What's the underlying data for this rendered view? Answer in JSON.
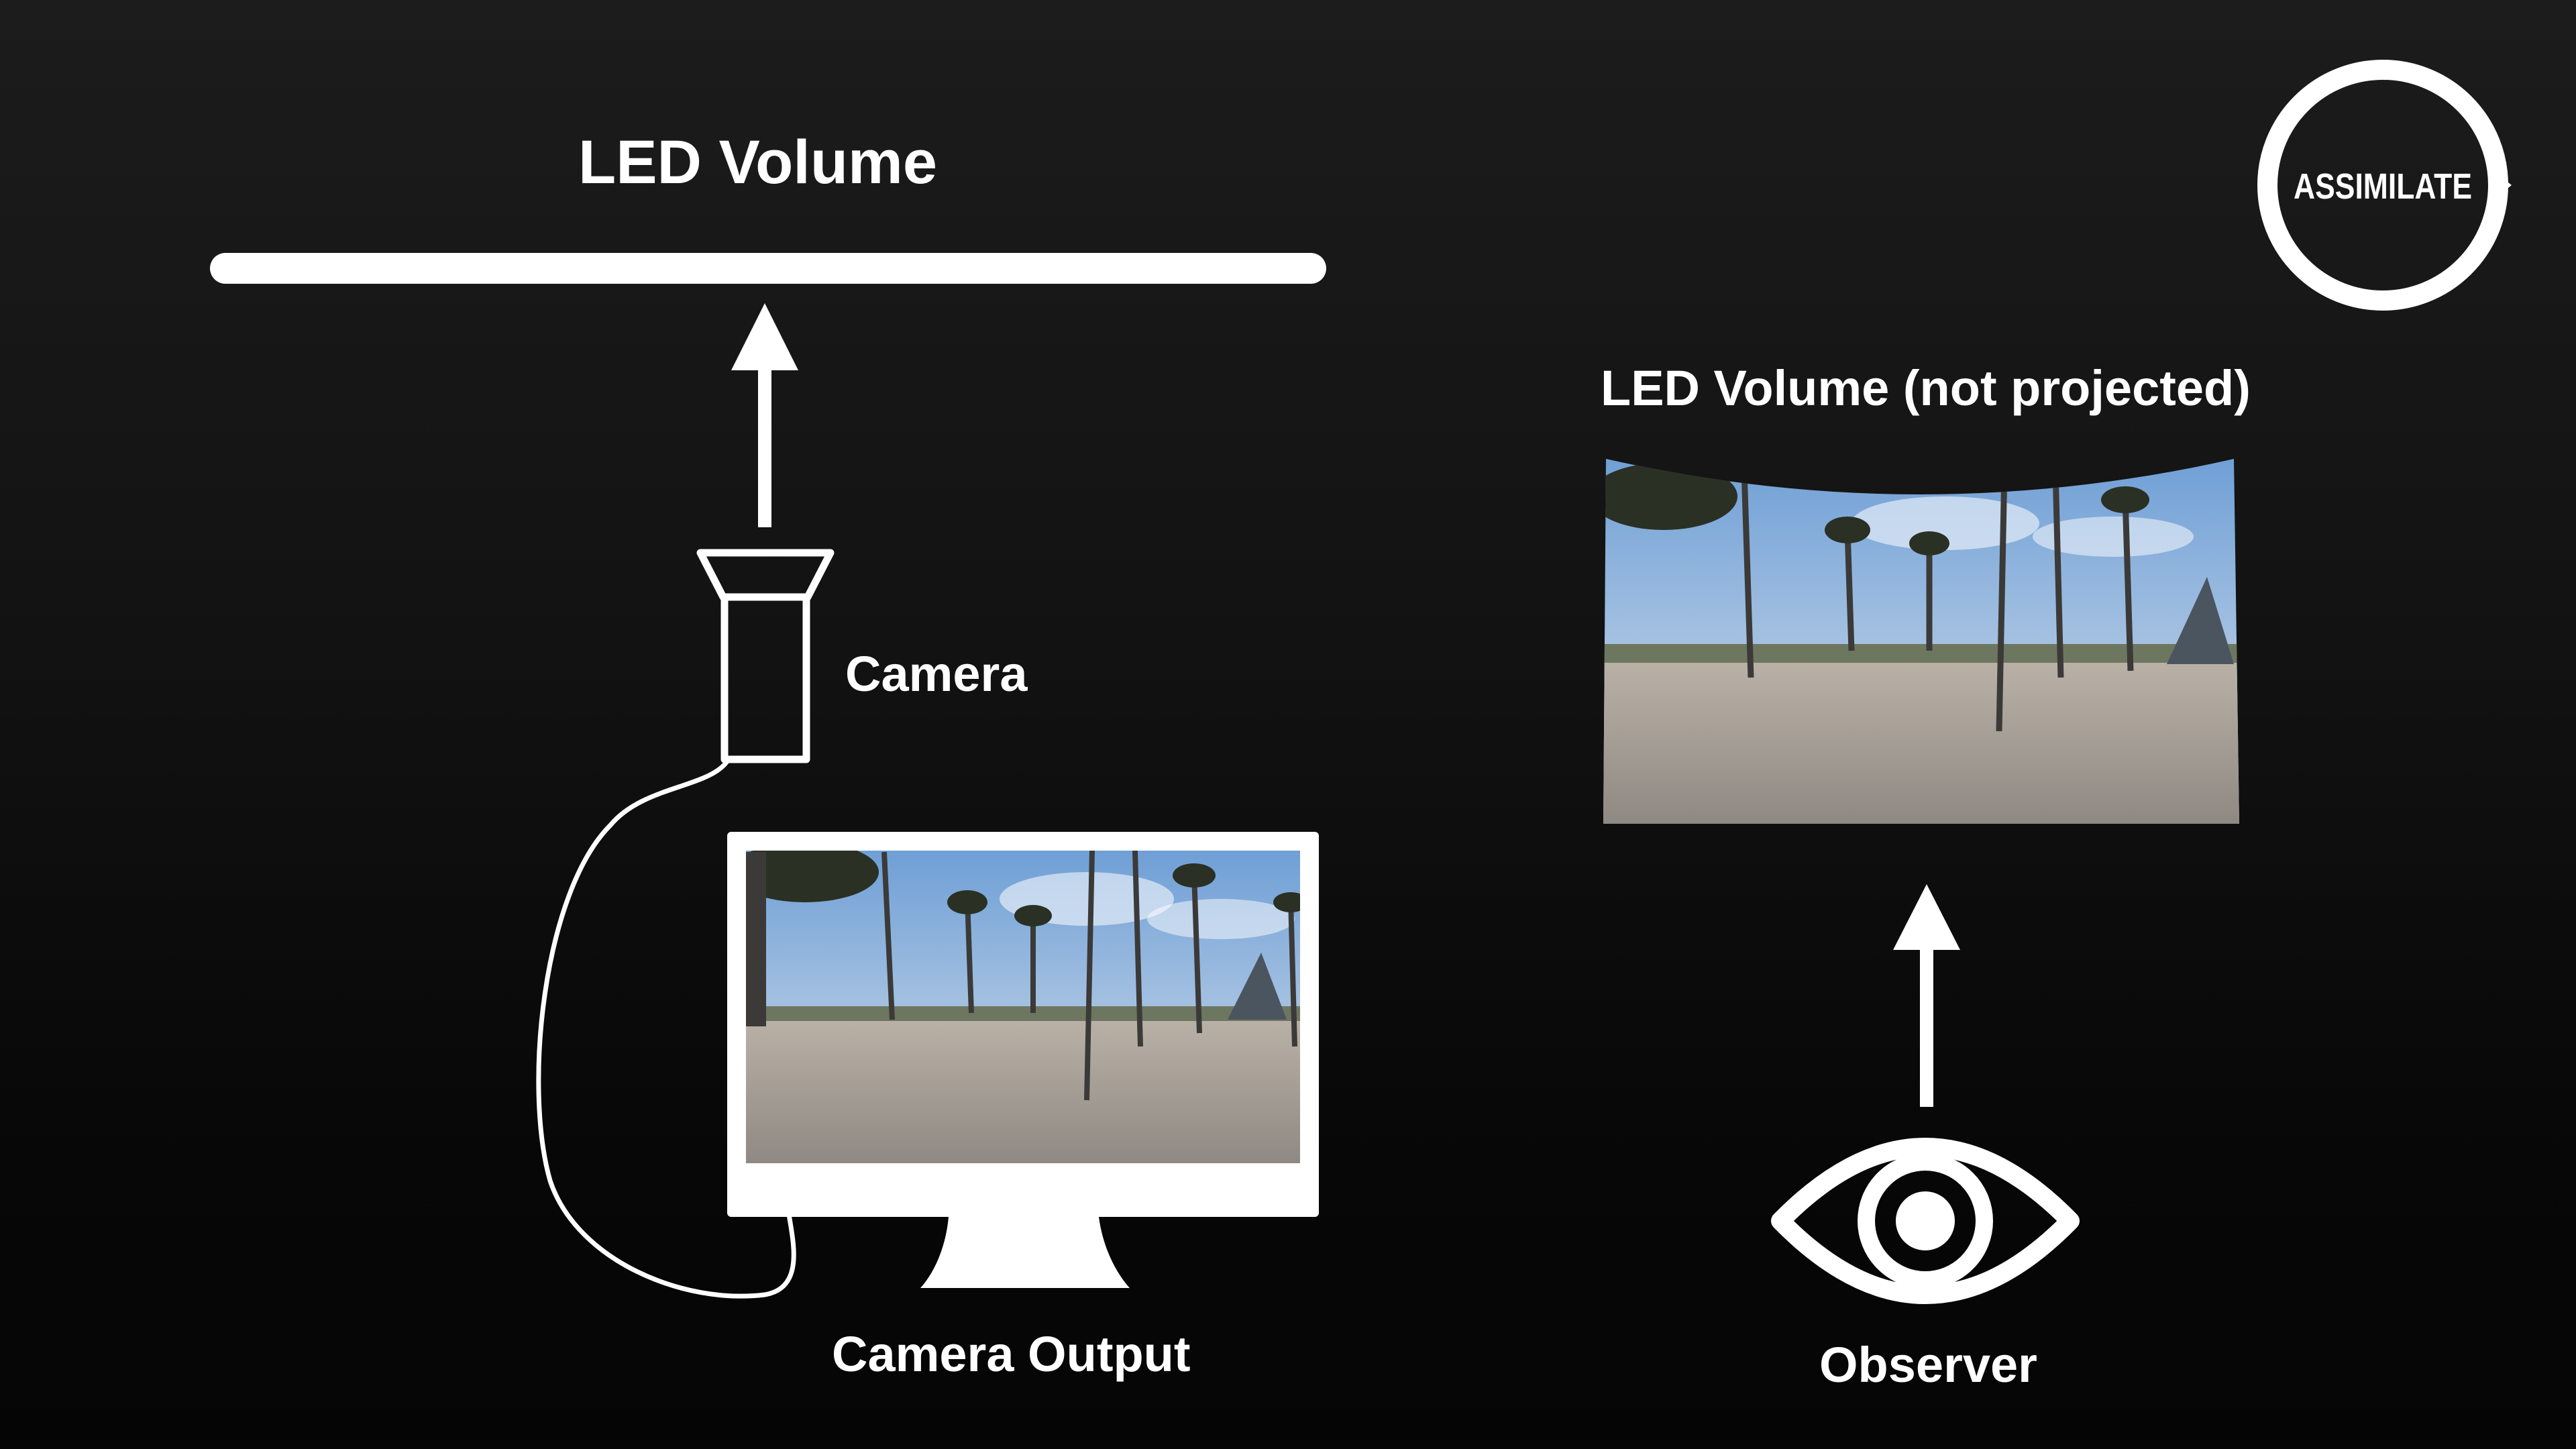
{
  "diagram": {
    "title": "LED Volume",
    "camera_label": "Camera",
    "camera_output_label": "Camera Output",
    "led_not_projected_label": "LED Volume (not projected)",
    "observer_label": "Observer"
  },
  "logo": {
    "text": "ASSIMILATE"
  },
  "icons": {
    "arrow": "arrow-up-icon",
    "camera": "camera-icon",
    "monitor": "monitor-icon",
    "eye": "eye-icon",
    "logo": "assimilate-logo"
  },
  "colors": {
    "foreground": "#ffffff",
    "background_top": "#1c1c1c",
    "background_bottom": "#050505"
  }
}
